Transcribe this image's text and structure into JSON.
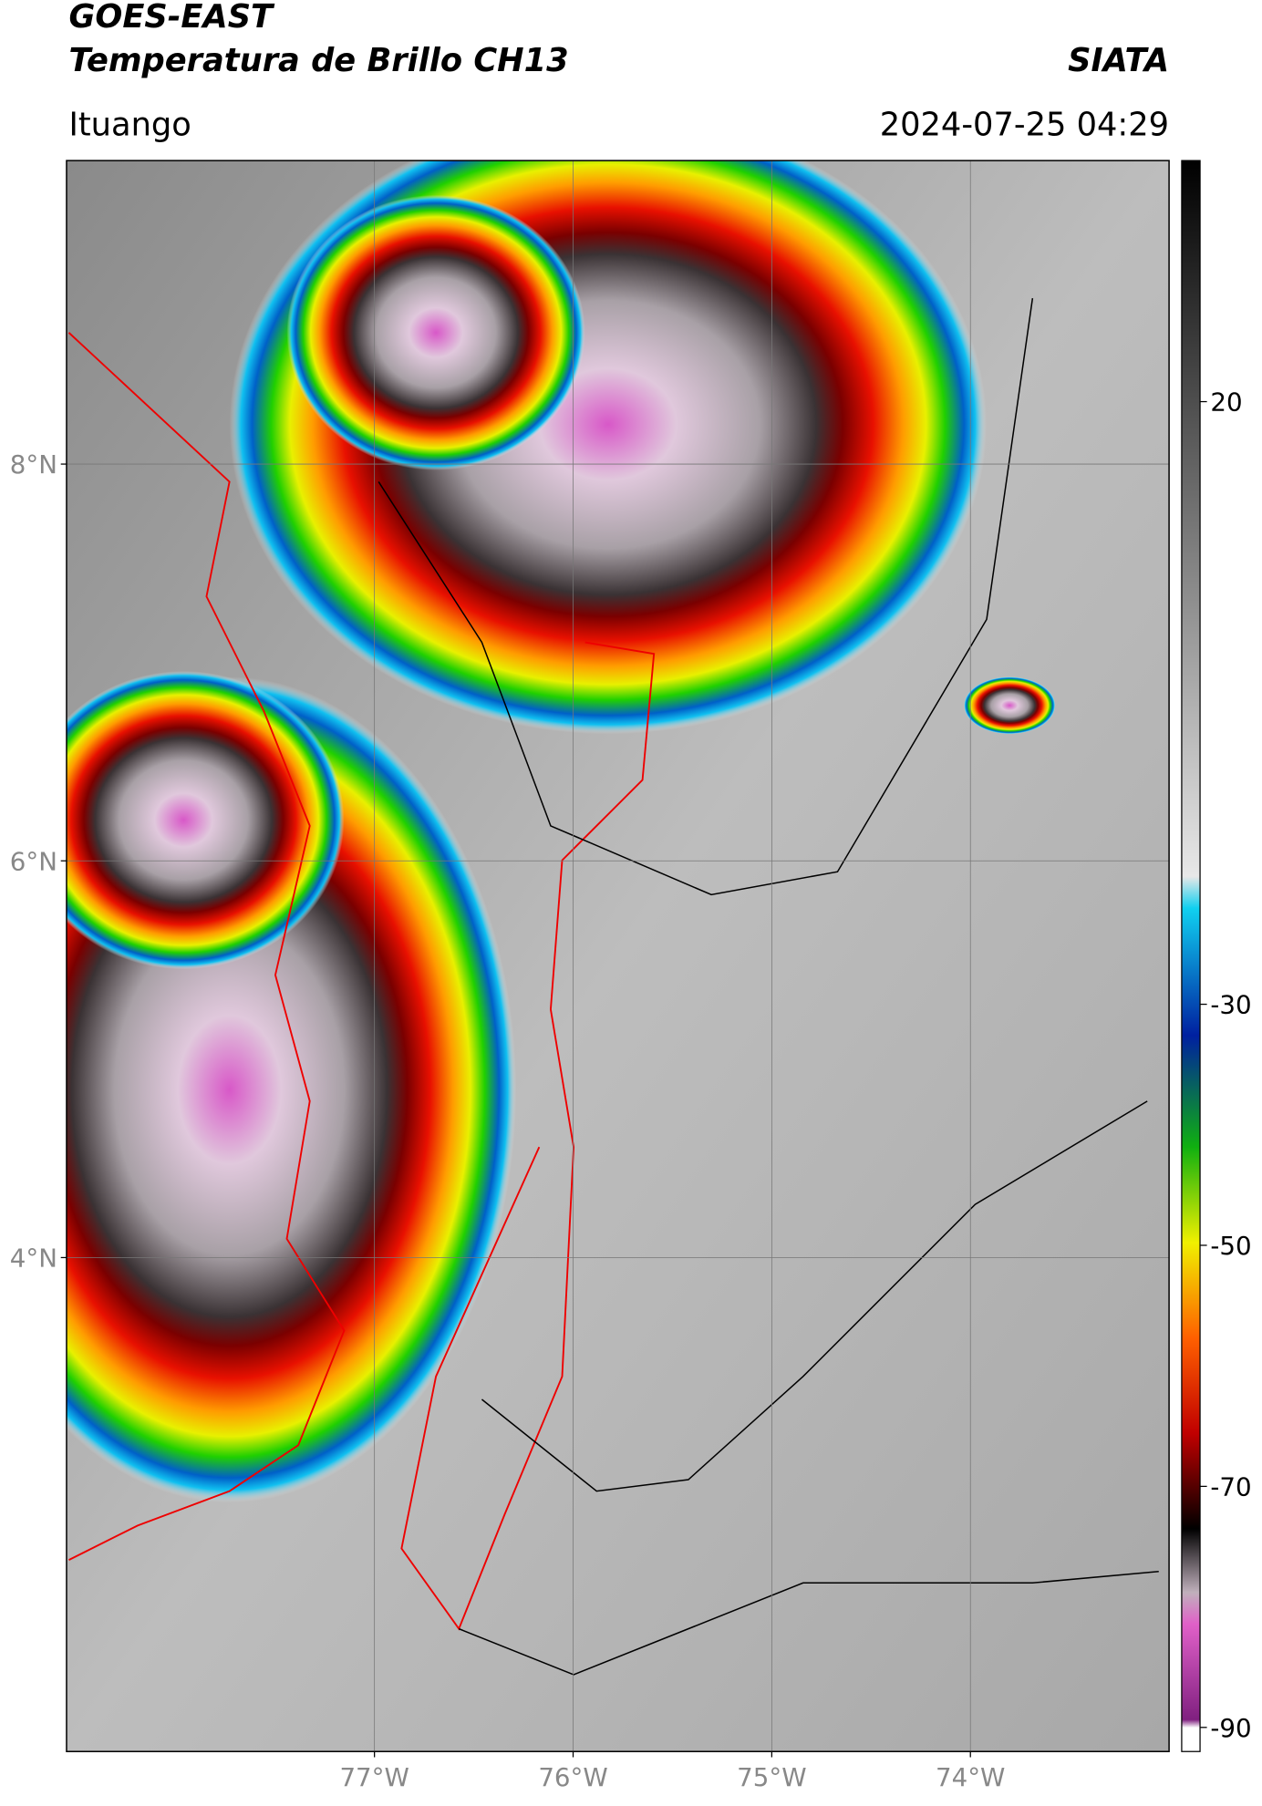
{
  "header": {
    "title": "GOES-EAST",
    "subtitle": "Temperatura de Brillo CH13",
    "source": "SIATA",
    "location": "Ituango",
    "datetime": "2024-07-25 04:29"
  },
  "map": {
    "latlim": [
      1.51,
      9.53
    ],
    "lonlim": [
      -78.55,
      -73.0
    ],
    "latticks": [
      {
        "value": 8,
        "label": "8°N"
      },
      {
        "value": 6,
        "label": "6°N"
      },
      {
        "value": 4,
        "label": "4°N"
      }
    ],
    "lonticks": [
      {
        "value": -77,
        "label": "77°W"
      },
      {
        "value": -76,
        "label": "76°W"
      },
      {
        "value": -75,
        "label": "75°W"
      },
      {
        "value": -74,
        "label": "74°W"
      }
    ]
  },
  "colorbar": {
    "lim": [
      -92,
      40
    ],
    "ticks": [
      20,
      -30,
      -50,
      -70,
      -90
    ]
  }
}
